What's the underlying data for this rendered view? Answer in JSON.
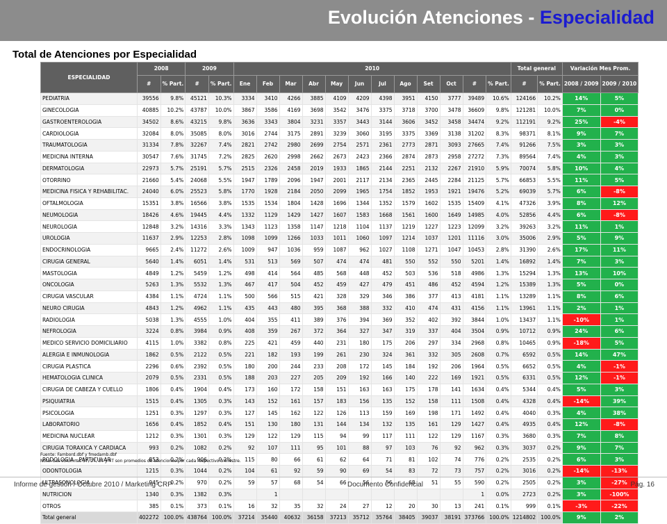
{
  "page": {
    "title_main": "Evolución Atenciones - ",
    "title_accent": "Especialidad",
    "subtitle": "Total de Atenciones por Especialidad"
  },
  "table": {
    "head": {
      "especialidad": "ESPECIALIDAD",
      "y2008": "2008",
      "y2009": "2009",
      "y2010": "2010",
      "total_general": "Total general",
      "variacion": "Variación Mes Prom.",
      "hash": "#",
      "part": "% Part.",
      "months": [
        "Ene",
        "Feb",
        "Mar",
        "Abr",
        "May",
        "Jun",
        "Jul",
        "Ago",
        "Set",
        "Oct"
      ],
      "var1": "2008 / 2009",
      "var2": "2009 / 2010"
    },
    "rows": [
      [
        "PEDIATRIA",
        "39556",
        "9.8%",
        "45121",
        "10.3%",
        "3334",
        "3410",
        "4266",
        "3885",
        "4109",
        "4209",
        "4398",
        "3951",
        "4150",
        "3777",
        "39489",
        "10.6%",
        "124166",
        "10.2%",
        "14%",
        "5%"
      ],
      [
        "GINECOLOGIA",
        "40885",
        "10.2%",
        "43787",
        "10.0%",
        "3867",
        "3586",
        "4169",
        "3698",
        "3542",
        "3476",
        "3375",
        "3718",
        "3700",
        "3478",
        "36609",
        "9.8%",
        "121281",
        "10.0%",
        "7%",
        "0%"
      ],
      [
        "GASTROENTEROLOGIA",
        "34502",
        "8.6%",
        "43215",
        "9.8%",
        "3636",
        "3343",
        "3804",
        "3231",
        "3357",
        "3443",
        "3144",
        "3606",
        "3452",
        "3458",
        "34474",
        "9.2%",
        "112191",
        "9.2%",
        "25%",
        "-4%"
      ],
      [
        "CARDIOLOGIA",
        "32084",
        "8.0%",
        "35085",
        "8.0%",
        "3016",
        "2744",
        "3175",
        "2891",
        "3239",
        "3060",
        "3195",
        "3375",
        "3369",
        "3138",
        "31202",
        "8.3%",
        "98371",
        "8.1%",
        "9%",
        "7%"
      ],
      [
        "TRAUMATOLOGIA",
        "31334",
        "7.8%",
        "32267",
        "7.4%",
        "2821",
        "2742",
        "2980",
        "2699",
        "2754",
        "2571",
        "2361",
        "2773",
        "2871",
        "3093",
        "27665",
        "7.4%",
        "91266",
        "7.5%",
        "3%",
        "3%"
      ],
      [
        "MEDICINA INTERNA",
        "30547",
        "7.6%",
        "31745",
        "7.2%",
        "2825",
        "2620",
        "2998",
        "2662",
        "2673",
        "2423",
        "2366",
        "2874",
        "2873",
        "2958",
        "27272",
        "7.3%",
        "89564",
        "7.4%",
        "4%",
        "3%"
      ],
      [
        "DERMATOLOGIA",
        "22973",
        "5.7%",
        "25191",
        "5.7%",
        "2515",
        "2326",
        "2458",
        "2019",
        "1933",
        "1865",
        "2144",
        "2251",
        "2132",
        "2267",
        "21910",
        "5.9%",
        "70074",
        "5.8%",
        "10%",
        "4%"
      ],
      [
        "OTORRINO",
        "21660",
        "5.4%",
        "24068",
        "5.5%",
        "1947",
        "1789",
        "2096",
        "1947",
        "2001",
        "2117",
        "2134",
        "2365",
        "2445",
        "2284",
        "21125",
        "5.7%",
        "66853",
        "5.5%",
        "11%",
        "5%"
      ],
      [
        "MEDICINA FISICA Y REHABILITAC.",
        "24040",
        "6.0%",
        "25523",
        "5.8%",
        "1770",
        "1928",
        "2184",
        "2050",
        "2099",
        "1965",
        "1754",
        "1852",
        "1953",
        "1921",
        "19476",
        "5.2%",
        "69039",
        "5.7%",
        "6%",
        "-8%"
      ],
      [
        "OFTALMOLOGIA",
        "15351",
        "3.8%",
        "16566",
        "3.8%",
        "1535",
        "1534",
        "1804",
        "1428",
        "1696",
        "1344",
        "1352",
        "1579",
        "1602",
        "1535",
        "15409",
        "4.1%",
        "47326",
        "3.9%",
        "8%",
        "12%"
      ],
      [
        "NEUMOLOGIA",
        "18426",
        "4.6%",
        "19445",
        "4.4%",
        "1332",
        "1129",
        "1429",
        "1427",
        "1607",
        "1583",
        "1668",
        "1561",
        "1600",
        "1649",
        "14985",
        "4.0%",
        "52856",
        "4.4%",
        "6%",
        "-8%"
      ],
      [
        "NEUROLOGIA",
        "12848",
        "3.2%",
        "14316",
        "3.3%",
        "1343",
        "1123",
        "1358",
        "1147",
        "1218",
        "1104",
        "1137",
        "1219",
        "1227",
        "1223",
        "12099",
        "3.2%",
        "39263",
        "3.2%",
        "11%",
        "1%"
      ],
      [
        "UROLOGIA",
        "11637",
        "2.9%",
        "12253",
        "2.8%",
        "1098",
        "1099",
        "1266",
        "1033",
        "1011",
        "1060",
        "1097",
        "1214",
        "1037",
        "1201",
        "11116",
        "3.0%",
        "35006",
        "2.9%",
        "5%",
        "9%"
      ],
      [
        "ENDOCRINOLOGIA",
        "9665",
        "2.4%",
        "11272",
        "2.6%",
        "1009",
        "947",
        "1036",
        "959",
        "1087",
        "962",
        "1027",
        "1108",
        "1271",
        "1047",
        "10453",
        "2.8%",
        "31390",
        "2.6%",
        "17%",
        "11%"
      ],
      [
        "CIRUGIA GENERAL",
        "5640",
        "1.4%",
        "6051",
        "1.4%",
        "531",
        "513",
        "569",
        "507",
        "474",
        "474",
        "481",
        "550",
        "552",
        "550",
        "5201",
        "1.4%",
        "16892",
        "1.4%",
        "7%",
        "3%"
      ],
      [
        "MASTOLOGIA",
        "4849",
        "1.2%",
        "5459",
        "1.2%",
        "498",
        "414",
        "564",
        "485",
        "568",
        "448",
        "452",
        "503",
        "536",
        "518",
        "4986",
        "1.3%",
        "15294",
        "1.3%",
        "13%",
        "10%"
      ],
      [
        "ONCOLOGIA",
        "5263",
        "1.3%",
        "5532",
        "1.3%",
        "467",
        "417",
        "504",
        "452",
        "459",
        "427",
        "479",
        "451",
        "486",
        "452",
        "4594",
        "1.2%",
        "15389",
        "1.3%",
        "5%",
        "0%"
      ],
      [
        "CIRUGIA VASCULAR",
        "4384",
        "1.1%",
        "4724",
        "1.1%",
        "500",
        "566",
        "515",
        "421",
        "328",
        "329",
        "346",
        "386",
        "377",
        "413",
        "4181",
        "1.1%",
        "13289",
        "1.1%",
        "8%",
        "6%"
      ],
      [
        "NEURO CIRUGIA",
        "4843",
        "1.2%",
        "4962",
        "1.1%",
        "435",
        "443",
        "480",
        "395",
        "368",
        "388",
        "332",
        "410",
        "474",
        "431",
        "4156",
        "1.1%",
        "13961",
        "1.1%",
        "2%",
        "1%"
      ],
      [
        "RADIOLOGIA",
        "5038",
        "1.3%",
        "4555",
        "1.0%",
        "404",
        "355",
        "411",
        "389",
        "376",
        "394",
        "369",
        "352",
        "402",
        "392",
        "3844",
        "1.0%",
        "13437",
        "1.1%",
        "-10%",
        "1%"
      ],
      [
        "NEFROLOGIA",
        "3224",
        "0.8%",
        "3984",
        "0.9%",
        "408",
        "359",
        "267",
        "372",
        "364",
        "327",
        "347",
        "319",
        "337",
        "404",
        "3504",
        "0.9%",
        "10712",
        "0.9%",
        "24%",
        "6%"
      ],
      [
        "MEDICO SERVICIO DOMICILIARIO",
        "4115",
        "1.0%",
        "3382",
        "0.8%",
        "225",
        "421",
        "459",
        "440",
        "231",
        "180",
        "175",
        "206",
        "297",
        "334",
        "2968",
        "0.8%",
        "10465",
        "0.9%",
        "-18%",
        "5%"
      ],
      [
        "ALERGIA E INMUNOLOGIA",
        "1862",
        "0.5%",
        "2122",
        "0.5%",
        "221",
        "182",
        "193",
        "199",
        "261",
        "230",
        "324",
        "361",
        "332",
        "305",
        "2608",
        "0.7%",
        "6592",
        "0.5%",
        "14%",
        "47%"
      ],
      [
        "CIRUGIA PLASTICA",
        "2296",
        "0.6%",
        "2392",
        "0.5%",
        "180",
        "200",
        "244",
        "233",
        "208",
        "172",
        "145",
        "184",
        "192",
        "206",
        "1964",
        "0.5%",
        "6652",
        "0.5%",
        "4%",
        "-1%"
      ],
      [
        "HEMATOLOGIA CLINICA",
        "2079",
        "0.5%",
        "2331",
        "0.5%",
        "188",
        "203",
        "227",
        "205",
        "209",
        "192",
        "166",
        "140",
        "222",
        "169",
        "1921",
        "0.5%",
        "6331",
        "0.5%",
        "12%",
        "-1%"
      ],
      [
        "CIRUGIA DE CABEZA Y CUELLO",
        "1806",
        "0.4%",
        "1904",
        "0.4%",
        "173",
        "160",
        "172",
        "158",
        "151",
        "163",
        "163",
        "175",
        "178",
        "141",
        "1634",
        "0.4%",
        "5344",
        "0.4%",
        "5%",
        "3%"
      ],
      [
        "PSIQUIATRIA",
        "1515",
        "0.4%",
        "1305",
        "0.3%",
        "143",
        "152",
        "161",
        "157",
        "183",
        "156",
        "135",
        "152",
        "158",
        "111",
        "1508",
        "0.4%",
        "4328",
        "0.4%",
        "-14%",
        "39%"
      ],
      [
        "PSICOLOGIA",
        "1251",
        "0.3%",
        "1297",
        "0.3%",
        "127",
        "145",
        "162",
        "122",
        "126",
        "113",
        "159",
        "169",
        "198",
        "171",
        "1492",
        "0.4%",
        "4040",
        "0.3%",
        "4%",
        "38%"
      ],
      [
        "LABORATORIO",
        "1656",
        "0.4%",
        "1852",
        "0.4%",
        "151",
        "130",
        "180",
        "131",
        "144",
        "134",
        "132",
        "135",
        "161",
        "129",
        "1427",
        "0.4%",
        "4935",
        "0.4%",
        "12%",
        "-8%"
      ],
      [
        "MEDICINA NUCLEAR",
        "1212",
        "0.3%",
        "1301",
        "0.3%",
        "129",
        "122",
        "129",
        "115",
        "94",
        "99",
        "117",
        "111",
        "122",
        "129",
        "1167",
        "0.3%",
        "3680",
        "0.3%",
        "7%",
        "8%"
      ],
      [
        "CIRUGIA TORAXICA Y CARDIACA",
        "993",
        "0.2%",
        "1082",
        "0.2%",
        "92",
        "107",
        "111",
        "95",
        "101",
        "88",
        "97",
        "103",
        "76",
        "92",
        "962",
        "0.3%",
        "3037",
        "0.2%",
        "9%",
        "7%"
      ],
      [
        "PODOLOGIA - PARTICULAR",
        "853",
        "0.2%",
        "906",
        "0.2%",
        "115",
        "80",
        "66",
        "61",
        "62",
        "64",
        "71",
        "81",
        "102",
        "74",
        "776",
        "0.2%",
        "2535",
        "0.2%",
        "6%",
        "3%"
      ],
      [
        "ODONTOLOGIA",
        "1215",
        "0.3%",
        "1044",
        "0.2%",
        "104",
        "61",
        "92",
        "59",
        "90",
        "69",
        "54",
        "83",
        "72",
        "73",
        "757",
        "0.2%",
        "3016",
        "0.2%",
        "-14%",
        "-13%"
      ],
      [
        "ULTRASONOLOGIA",
        "945",
        "0.2%",
        "970",
        "0.2%",
        "59",
        "57",
        "68",
        "54",
        "66",
        "56",
        "56",
        "68",
        "51",
        "55",
        "590",
        "0.2%",
        "2505",
        "0.2%",
        "3%",
        "-27%"
      ],
      [
        "NUTRICION",
        "1340",
        "0.3%",
        "1382",
        "0.3%",
        "",
        "1",
        "",
        "",
        "",
        "",
        "",
        "",
        "",
        "",
        "1",
        "0.0%",
        "2723",
        "0.2%",
        "3%",
        "-100%"
      ],
      [
        "OTROS",
        "385",
        "0.1%",
        "373",
        "0.1%",
        "16",
        "32",
        "35",
        "32",
        "24",
        "27",
        "12",
        "20",
        "30",
        "13",
        "241",
        "0.1%",
        "999",
        "0.1%",
        "-3%",
        "-22%"
      ],
      [
        "Total general",
        "402272",
        "100.0%",
        "438764",
        "100.0%",
        "37214",
        "35440",
        "40632",
        "36158",
        "37213",
        "35712",
        "35764",
        "38405",
        "39037",
        "38191",
        "373766",
        "100.0%",
        "1214802",
        "100.0%",
        "9%",
        "2%"
      ]
    ]
  },
  "notes": {
    "fuente": "Fuente: Fambord.dbf  y fmedamb.dbf",
    "nota": "Nota: Las columnas 1T, 2T, 3T y 4T son promedios de atenciones por cada respectivo trimestre."
  },
  "footer": {
    "left": "Informe de gestión / Octubre 2010 / Marketing CRP",
    "center": "Documento Confidencial",
    "right": "Pág. 16"
  },
  "colors": {
    "positive": "#22b14c",
    "negative": "#ff1a1a",
    "header_bg": "#5f5f5f",
    "title_accent": "#1b1bd0"
  }
}
